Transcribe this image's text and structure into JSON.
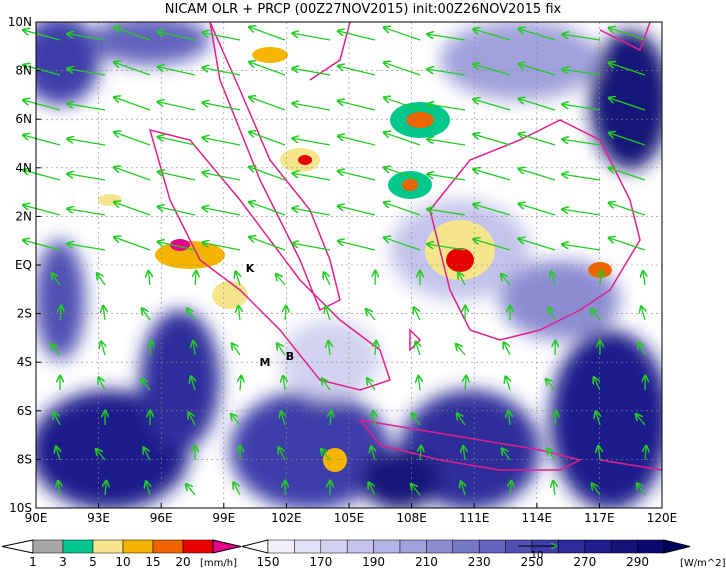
{
  "title": "NICAM OLR + PRCP (00Z27NOV2015) init:00Z26NOV2015 fix",
  "map": {
    "lon_labels": [
      "90E",
      "93E",
      "96E",
      "99E",
      "102E",
      "105E",
      "108E",
      "111E",
      "114E",
      "117E",
      "120E"
    ],
    "lat_labels": [
      "10N",
      "8N",
      "6N",
      "4N",
      "2N",
      "EQ",
      "2S",
      "4S",
      "6S",
      "8S",
      "10S"
    ],
    "stations": [
      "K",
      "M",
      "B"
    ],
    "vector_reference": "10"
  },
  "precip_colorbar": {
    "labels": [
      "1",
      "3",
      "5",
      "10",
      "15",
      "20"
    ],
    "unit": "[mm/h]",
    "colors": [
      "#ffffff",
      "#a6a6a6",
      "#00c88c",
      "#f5e68c",
      "#f5b400",
      "#f06400",
      "#e60000",
      "#e6008c"
    ]
  },
  "olr_colorbar": {
    "labels": [
      "150",
      "170",
      "190",
      "210",
      "230",
      "250",
      "270",
      "290"
    ],
    "unit": "[W/m^2]",
    "colors": [
      "#ffffff",
      "#f0f0fa",
      "#e1e1f5",
      "#d2d2f0",
      "#c3c3eb",
      "#b4b4e6",
      "#a0a0dc",
      "#8c8cd2",
      "#7878c8",
      "#6464be",
      "#5050b4",
      "#3c3caa",
      "#2d2d9b",
      "#1e1e8c",
      "#141478",
      "#0a0a6e",
      "#000064"
    ]
  }
}
